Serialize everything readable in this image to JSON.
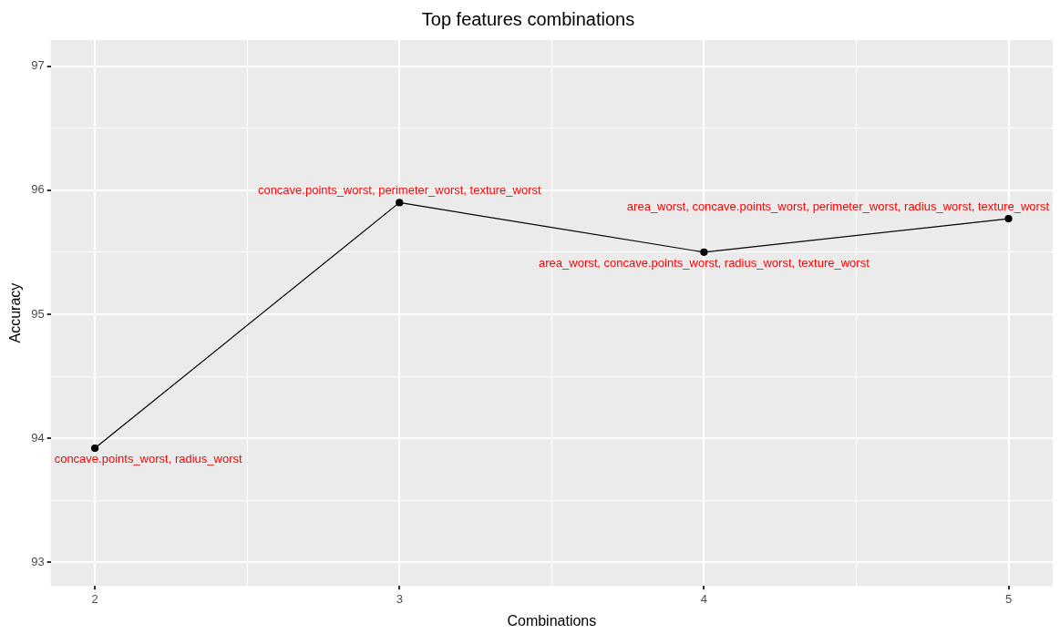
{
  "chart_data": {
    "type": "line",
    "title": "Top features combinations",
    "xlabel": "Combinations",
    "ylabel": "Accuracy",
    "x": [
      2,
      3,
      4,
      5
    ],
    "series": [
      {
        "color": "#000000",
        "values": [
          93.92,
          95.9,
          95.5,
          95.77
        ]
      }
    ],
    "marker": "circle",
    "line_style": "solid",
    "grid": true,
    "legend": false,
    "xlim": [
      1.855,
      5.145
    ],
    "ylim": [
      92.81,
      97.21
    ],
    "xticks": [
      {
        "value": 2.5,
        "label": null
      },
      {
        "value": 3.5,
        "label": null
      },
      {
        "value": 4.5,
        "label": null
      },
      2,
      3,
      4,
      5
    ],
    "yticks": [
      {
        "value": 93.5,
        "label": null
      },
      {
        "value": 94.5,
        "label": null
      },
      {
        "value": 95.5,
        "label": null
      },
      {
        "value": 96.5,
        "label": null
      },
      93,
      94,
      95,
      96,
      97
    ],
    "annotations": [
      {
        "text": "concave.points_worst, radius_worst",
        "x": 2,
        "y": 93.92
      },
      {
        "text": "concave.points_worst, perimeter_worst, texture_worst",
        "x": 3,
        "y": 95.9
      },
      {
        "text": "area_worst, concave.points_worst, radius_worst, texture_worst",
        "x": 4,
        "y": 95.5
      },
      {
        "text": "area_worst, concave.points_worst, perimeter_worst, radius_worst, texture_worst",
        "x": 5,
        "y": 95.77
      }
    ]
  }
}
